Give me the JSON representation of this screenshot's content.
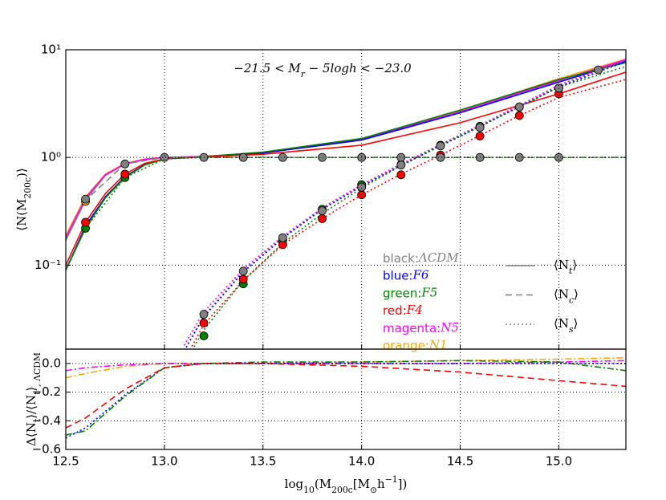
{
  "chart_data": [
    {
      "type": "line",
      "log_y": true,
      "grid": true,
      "title": [
        {
          "t": "−21.5 < M"
        },
        {
          "t": "r",
          "sub": true
        },
        {
          "t": " − 5log"
        },
        {
          "t": "h"
        },
        {
          "t": " < −23.0"
        }
      ],
      "ylabel": [
        {
          "t": "⟨N(M"
        },
        {
          "t": "200c",
          "sub": true
        },
        {
          "t": ")⟩"
        }
      ],
      "xlim": [
        12.5,
        15.34
      ],
      "xticks": [
        12.5,
        13.0,
        13.5,
        14.0,
        14.5,
        15.0
      ],
      "ylim": [
        0.0166,
        10
      ],
      "yticks": [
        {
          "value": 10,
          "label": "10¹"
        },
        {
          "value": 1,
          "label": "10⁰"
        },
        {
          "value": 0.1,
          "label": "10⁻¹"
        }
      ],
      "series": [
        {
          "color": "#808080",
          "dash": "solid",
          "x": [
            12.5,
            12.6,
            12.7,
            12.8,
            12.9,
            13.0,
            13.2,
            13.5,
            14.0,
            14.5,
            15.0,
            15.34
          ],
          "values": [
            0.17,
            0.4,
            0.68,
            0.87,
            0.96,
            1.0,
            1.02,
            1.1,
            1.45,
            2.6,
            5.1,
            8.0
          ]
        },
        {
          "color": "#ffa500",
          "dash": "solid",
          "x": [
            12.5,
            12.6,
            12.7,
            12.8,
            12.9,
            13.0,
            13.2,
            13.5,
            14.0,
            14.5,
            15.0,
            15.34
          ],
          "values": [
            0.19,
            0.43,
            0.7,
            0.88,
            0.97,
            1.0,
            1.02,
            1.1,
            1.5,
            2.7,
            5.4,
            8.2
          ]
        },
        {
          "color": "#ff00ff",
          "dash": "solid",
          "x": [
            12.5,
            12.6,
            12.7,
            12.8,
            12.9,
            13.0,
            13.2,
            13.5,
            14.0,
            14.5,
            15.0,
            15.34
          ],
          "values": [
            0.18,
            0.42,
            0.69,
            0.87,
            0.96,
            1.0,
            1.02,
            1.1,
            1.47,
            2.65,
            5.2,
            8.1
          ]
        },
        {
          "color": "#0000ff",
          "dash": "solid",
          "x": [
            12.5,
            12.6,
            12.7,
            12.8,
            12.9,
            13.0,
            13.2,
            13.5,
            14.0,
            14.5,
            15.0,
            15.34
          ],
          "values": [
            0.09,
            0.23,
            0.43,
            0.66,
            0.86,
            0.97,
            1.02,
            1.1,
            1.45,
            2.6,
            5.0,
            7.8
          ]
        },
        {
          "color": "#008000",
          "dash": "solid",
          "x": [
            12.5,
            12.6,
            12.7,
            12.8,
            12.9,
            13.0,
            13.2,
            13.5,
            14.0,
            14.5,
            15.0,
            15.34
          ],
          "values": [
            0.09,
            0.22,
            0.42,
            0.65,
            0.85,
            0.97,
            1.02,
            1.12,
            1.5,
            2.75,
            5.3,
            7.6
          ]
        },
        {
          "color": "#ff0000",
          "dash": "solid",
          "x": [
            12.5,
            12.6,
            12.7,
            12.8,
            12.9,
            13.0,
            13.2,
            13.5,
            14.0,
            14.5,
            15.0,
            15.34
          ],
          "values": [
            0.1,
            0.25,
            0.46,
            0.7,
            0.88,
            0.97,
            1.01,
            1.07,
            1.3,
            2.1,
            3.9,
            6.2
          ]
        },
        {
          "color": "#808080",
          "dash": "dashed",
          "x": [
            12.5,
            12.6,
            12.8,
            13.0,
            13.2,
            15.34
          ],
          "values": [
            0.17,
            0.4,
            0.87,
            1.0,
            1.0,
            1.0
          ]
        },
        {
          "color": "#008000",
          "dash": "dotted",
          "x": [
            12.5,
            12.6,
            12.8,
            13.0,
            13.2,
            15.34
          ],
          "values": [
            0.09,
            0.22,
            0.65,
            0.97,
            1.0,
            1.0
          ]
        },
        {
          "color": "#808080",
          "dash": "dotted",
          "x": [
            13.1,
            13.2,
            13.4,
            13.6,
            13.8,
            14.0,
            14.2,
            14.4,
            14.6,
            14.8,
            15.0,
            15.34
          ],
          "values": [
            0.016,
            0.034,
            0.088,
            0.18,
            0.33,
            0.55,
            0.85,
            1.3,
            1.95,
            3.0,
            4.6,
            8.0
          ]
        },
        {
          "color": "#ff00ff",
          "dash": "dotted",
          "x": [
            13.1,
            13.2,
            13.4,
            13.6,
            13.8,
            14.0,
            14.2,
            14.4,
            14.6,
            14.8,
            15.0,
            15.34
          ],
          "values": [
            0.018,
            0.037,
            0.092,
            0.185,
            0.34,
            0.56,
            0.87,
            1.32,
            2.0,
            3.05,
            4.7,
            8.1
          ]
        },
        {
          "color": "#0000ff",
          "dash": "dotted",
          "x": [
            13.1,
            13.2,
            13.4,
            13.6,
            13.8,
            14.0,
            14.2,
            14.4,
            14.6,
            14.8,
            15.0,
            15.34
          ],
          "values": [
            0.016,
            0.033,
            0.086,
            0.178,
            0.33,
            0.54,
            0.84,
            1.28,
            1.93,
            2.95,
            4.5,
            7.8
          ]
        },
        {
          "color": "#008000",
          "dash": "dotted",
          "x": [
            13.1,
            13.2,
            13.4,
            13.6,
            13.8,
            14.0,
            14.2,
            14.4,
            14.6,
            14.8,
            15.0,
            15.34
          ],
          "values": [
            0.012,
            0.025,
            0.072,
            0.16,
            0.3,
            0.52,
            0.84,
            1.3,
            1.95,
            2.95,
            4.5,
            7.0
          ]
        },
        {
          "color": "#ff0000",
          "dash": "dotted",
          "x": [
            13.1,
            13.2,
            13.4,
            13.6,
            13.8,
            14.0,
            14.2,
            14.4,
            14.6,
            14.8,
            15.0,
            15.34
          ],
          "values": [
            0.013,
            0.028,
            0.072,
            0.155,
            0.27,
            0.45,
            0.7,
            1.05,
            1.6,
            2.45,
            3.6,
            5.3
          ]
        }
      ],
      "markers": [
        {
          "color": "#ffa500",
          "x": [
            12.6
          ],
          "values": [
            0.39
          ]
        },
        {
          "color": "#008000",
          "x": [
            12.6,
            12.8,
            13.2,
            13.4,
            13.6,
            13.8,
            14.0,
            14.2,
            14.4,
            14.6,
            14.8,
            15.0
          ],
          "values": [
            0.22,
            0.65,
            0.022,
            0.067,
            0.17,
            0.33,
            0.56,
            0.86,
            1.3,
            1.95,
            2.95,
            4.4
          ]
        },
        {
          "color": "#ff0000",
          "x": [
            12.6,
            12.8,
            13.2,
            13.4,
            13.6,
            13.8,
            14.0,
            14.2,
            14.4,
            14.6,
            14.8,
            15.0
          ],
          "values": [
            0.25,
            0.7,
            0.029,
            0.074,
            0.155,
            0.27,
            0.45,
            0.69,
            1.05,
            1.58,
            2.45,
            3.9
          ]
        },
        {
          "color": "#808080",
          "x": [
            12.6,
            12.8,
            13.0,
            13.2,
            13.4,
            13.6,
            13.8,
            14.0,
            14.2,
            14.4,
            14.6,
            14.8,
            15.0,
            15.2
          ],
          "values": [
            0.41,
            0.87,
            1.0,
            1.0,
            1.0,
            1.0,
            1.0,
            1.0,
            1.0,
            1.0,
            1.0,
            1.0,
            1.0,
            6.5
          ]
        },
        {
          "color": "#808080",
          "x": [
            13.2,
            13.4,
            13.6,
            13.8,
            14.0,
            14.2,
            14.4,
            14.6,
            14.8,
            15.0
          ],
          "values": [
            0.035,
            0.088,
            0.18,
            0.32,
            0.53,
            0.85,
            1.28,
            1.9,
            2.95,
            4.4
          ]
        }
      ],
      "legend": [
        {
          "label": "black:",
          "model": "ΛCDM",
          "color": "#808080"
        },
        {
          "label": "blue:",
          "model": "F6",
          "color": "#0000ff"
        },
        {
          "label": "green:",
          "model": "F5",
          "color": "#008000"
        },
        {
          "label": "red:",
          "model": "F4",
          "color": "#ff0000"
        },
        {
          "label": "magenta:",
          "model": "N5",
          "color": "#ff00ff"
        },
        {
          "label": "orange:",
          "model": "N1",
          "color": "#ffa500"
        }
      ],
      "style_legend": [
        {
          "dash": "solid",
          "text": "⟨N",
          "sub": "t",
          "close": "⟩"
        },
        {
          "dash": "dashed",
          "text": "⟨N",
          "sub": "c",
          "close": "⟩"
        },
        {
          "dash": "dotted",
          "text": "⟨N",
          "sub": "s",
          "close": "⟩"
        }
      ]
    },
    {
      "type": "line",
      "log_y": false,
      "grid": true,
      "xlabel": [
        {
          "t": "log"
        },
        {
          "t": "10",
          "sub": true
        },
        {
          "t": "(M"
        },
        {
          "t": "200c",
          "sub": true
        },
        {
          "t": "[M"
        },
        {
          "t": "⊙",
          "sub": true
        },
        {
          "t": "h"
        },
        {
          "t": "−1",
          "sup": true
        },
        {
          "t": "])"
        }
      ],
      "ylabel": [
        {
          "t": "Δ⟨N"
        },
        {
          "t": "t",
          "sub": true
        },
        {
          "t": "⟩/⟨N"
        },
        {
          "t": "t",
          "sub": true
        },
        {
          "t": "⟩"
        },
        {
          "t": ", ΛCDM",
          "sub": true
        }
      ],
      "xlim": [
        12.5,
        15.34
      ],
      "xticks": [
        {
          "value": 12.5,
          "label": "12.5"
        },
        {
          "value": 13,
          "label": "13.0"
        },
        {
          "value": 13.5,
          "label": "13.5"
        },
        {
          "value": 14,
          "label": "14.0"
        },
        {
          "value": 14.5,
          "label": "14.5"
        },
        {
          "value": 15,
          "label": "15.0"
        }
      ],
      "ylim": [
        -0.6,
        0.1
      ],
      "yticks": [
        {
          "value": 0,
          "label": "0.0"
        },
        {
          "value": -0.2,
          "label": "−0.2"
        },
        {
          "value": -0.4,
          "label": "−0.4"
        },
        {
          "value": -0.6,
          "label": "−0.6"
        }
      ],
      "series": [
        {
          "color": "#ffa500",
          "dash": "dashdot",
          "x": [
            12.5,
            12.6,
            12.8,
            13.0,
            13.2,
            13.5,
            14.0,
            14.5,
            15.0,
            15.34
          ],
          "values": [
            -0.1,
            -0.07,
            -0.02,
            0,
            0,
            0,
            0.01,
            0.02,
            0.03,
            0.04
          ]
        },
        {
          "color": "#ff00ff",
          "dash": "dashdot",
          "x": [
            12.5,
            12.6,
            12.8,
            13.0,
            13.2,
            13.5,
            14.0,
            14.5,
            15.0,
            15.34
          ],
          "values": [
            -0.05,
            -0.03,
            -0.01,
            0,
            0,
            0,
            0,
            0,
            0.01,
            0.02
          ]
        },
        {
          "color": "#0000ff",
          "dash": "dotted",
          "x": [
            12.5,
            12.6,
            12.8,
            13.0,
            13.2,
            13.5,
            14.0,
            14.5,
            15.0,
            15.34
          ],
          "values": [
            -0.52,
            -0.45,
            -0.22,
            -0.03,
            0,
            0,
            0,
            0,
            0,
            0
          ]
        },
        {
          "color": "#008000",
          "dash": "dashdot",
          "x": [
            12.5,
            12.6,
            12.8,
            13.0,
            13.2,
            13.5,
            14.0,
            14.5,
            15.0,
            15.34
          ],
          "values": [
            -0.5,
            -0.47,
            -0.23,
            -0.03,
            0,
            0.01,
            0.01,
            0.02,
            0.01,
            -0.05
          ]
        },
        {
          "color": "#ff0000",
          "dash": "dashed",
          "x": [
            12.5,
            12.6,
            12.8,
            13.0,
            13.2,
            13.5,
            14.0,
            14.5,
            15.0,
            15.34
          ],
          "values": [
            -0.45,
            -0.38,
            -0.18,
            -0.03,
            0,
            0,
            -0.02,
            -0.06,
            -0.12,
            -0.16
          ]
        }
      ]
    }
  ]
}
